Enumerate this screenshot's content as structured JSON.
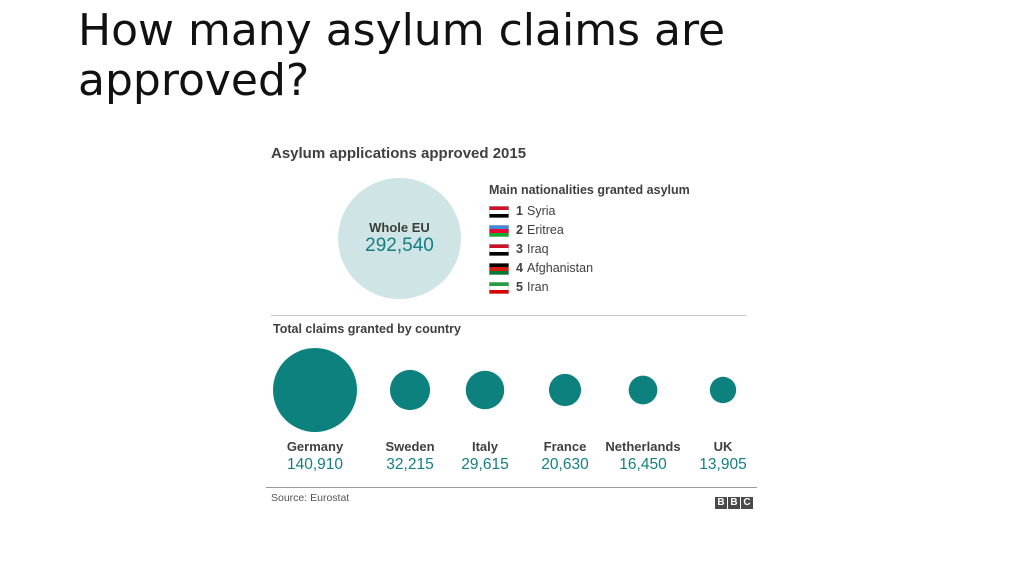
{
  "slide": {
    "title": "How many asylum claims are approved?"
  },
  "graphic": {
    "title": "Asylum applications approved 2015",
    "whole_eu": {
      "label": "Whole EU",
      "value": "292,540"
    },
    "nationalities": {
      "title": "Main nationalities granted asylum",
      "items": [
        {
          "rank": "1",
          "name": "Syria",
          "flag": "syria-flag-icon",
          "stripes": [
            "#ce1126",
            "#ffffff",
            "#000000"
          ]
        },
        {
          "rank": "2",
          "name": "Eritrea",
          "flag": "eritrea-flag-icon",
          "stripes": [
            "#4189dd",
            "#ea0437",
            "#12ad2b"
          ]
        },
        {
          "rank": "3",
          "name": "Iraq",
          "flag": "iraq-flag-icon",
          "stripes": [
            "#ce1126",
            "#ffffff",
            "#000000"
          ]
        },
        {
          "rank": "4",
          "name": "Afghanistan",
          "flag": "afghanistan-flag-icon",
          "stripes": [
            "#000000",
            "#d32011",
            "#007a36"
          ]
        },
        {
          "rank": "5",
          "name": "Iran",
          "flag": "iran-flag-icon",
          "stripes": [
            "#239f40",
            "#ffffff",
            "#da0000"
          ]
        }
      ]
    },
    "countries_title": "Total claims granted by country",
    "source": "Source: Eurostat",
    "brand": [
      "B",
      "B",
      "C"
    ],
    "colors": {
      "bubble": "#0c817e",
      "eu_bubble": "#cfe4e4",
      "value_text": "#147e82"
    }
  },
  "chart_data": {
    "type": "bubble",
    "title": "Total claims granted by country",
    "categories": [
      "Germany",
      "Sweden",
      "Italy",
      "France",
      "Netherlands",
      "UK"
    ],
    "values": [
      140910,
      32215,
      29615,
      20630,
      16450,
      13905
    ],
    "value_labels": [
      "140,910",
      "32,215",
      "29,615",
      "20,630",
      "16,450",
      "13,905"
    ],
    "total": {
      "label": "Whole EU",
      "value": 292540
    }
  }
}
